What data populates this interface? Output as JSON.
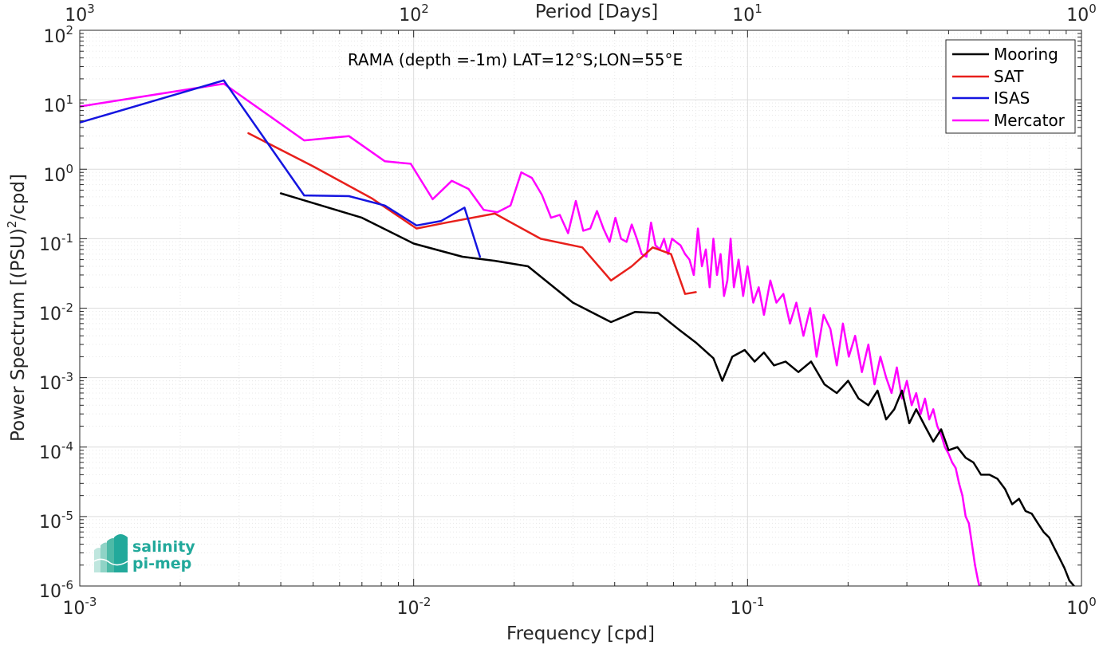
{
  "chart_data": {
    "type": "line",
    "title": "RAMA (depth =-1m) LAT=12°S;LON=55°E",
    "xlabel": "Frequency [cpd]",
    "ylabel_main": "Power Spectrum [(PSU)",
    "ylabel_sup": "2",
    "ylabel_tail": "/cpd]",
    "x2label": "Period [Days]",
    "xscale": "log",
    "yscale": "log",
    "xlim": [
      0.001,
      1
    ],
    "ylim": [
      1e-06,
      100
    ],
    "grid": true,
    "legend_position": "top-right",
    "x_ticks": [
      {
        "value": 0.001,
        "base": "10",
        "exp": "-3"
      },
      {
        "value": 0.01,
        "base": "10",
        "exp": "-2"
      },
      {
        "value": 0.1,
        "base": "10",
        "exp": "-1"
      },
      {
        "value": 1,
        "base": "10",
        "exp": "0"
      }
    ],
    "x2_ticks": [
      {
        "value": 0.001,
        "base": "10",
        "exp": "3"
      },
      {
        "value": 0.01,
        "base": "10",
        "exp": "2"
      },
      {
        "value": 0.1,
        "base": "10",
        "exp": "1"
      },
      {
        "value": 1,
        "base": "10",
        "exp": "0"
      }
    ],
    "y_ticks": [
      {
        "value": 100,
        "base": "10",
        "exp": "2"
      },
      {
        "value": 10,
        "base": "10",
        "exp": "1"
      },
      {
        "value": 1,
        "base": "10",
        "exp": "0"
      },
      {
        "value": 0.1,
        "base": "10",
        "exp": "-1"
      },
      {
        "value": 0.01,
        "base": "10",
        "exp": "-2"
      },
      {
        "value": 0.001,
        "base": "10",
        "exp": "-3"
      },
      {
        "value": 0.0001,
        "base": "10",
        "exp": "-4"
      },
      {
        "value": 1e-05,
        "base": "10",
        "exp": "-5"
      },
      {
        "value": 1e-06,
        "base": "10",
        "exp": "-6"
      }
    ],
    "series": [
      {
        "name": "Mooring",
        "color": "#000000",
        "x": [
          0.004,
          0.007,
          0.01,
          0.014,
          0.0175,
          0.022,
          0.03,
          0.039,
          0.046,
          0.054,
          0.062,
          0.07,
          0.079,
          0.084,
          0.09,
          0.098,
          0.105,
          0.112,
          0.12,
          0.13,
          0.142,
          0.155,
          0.17,
          0.185,
          0.2,
          0.215,
          0.23,
          0.245,
          0.26,
          0.275,
          0.29,
          0.305,
          0.32,
          0.34,
          0.36,
          0.38,
          0.4,
          0.425,
          0.45,
          0.475,
          0.5,
          0.53,
          0.56,
          0.59,
          0.62,
          0.65,
          0.68,
          0.71,
          0.74,
          0.77,
          0.8,
          0.83,
          0.86,
          0.89,
          0.92,
          0.95,
          0.98
        ],
        "y": [
          0.45,
          0.2,
          0.085,
          0.055,
          0.048,
          0.04,
          0.012,
          0.0063,
          0.0088,
          0.0085,
          0.005,
          0.0032,
          0.0019,
          0.0009,
          0.002,
          0.0025,
          0.0017,
          0.0023,
          0.0015,
          0.0017,
          0.0012,
          0.0017,
          0.0008,
          0.0006,
          0.0009,
          0.0005,
          0.0004,
          0.00065,
          0.00025,
          0.00035,
          0.00065,
          0.00022,
          0.00035,
          0.0002,
          0.00012,
          0.00018,
          9e-05,
          0.0001,
          7e-05,
          6e-05,
          4e-05,
          4e-05,
          3.5e-05,
          2.5e-05,
          1.5e-05,
          1.8e-05,
          1.2e-05,
          1.1e-05,
          8e-06,
          6e-06,
          5e-06,
          3.5e-06,
          2.5e-06,
          1.8e-06,
          1.2e-06,
          1e-06,
          8e-07
        ]
      },
      {
        "name": "SAT",
        "color": "#e8201c",
        "x": [
          0.0032,
          0.005,
          0.0075,
          0.0102,
          0.0125,
          0.0175,
          0.024,
          0.032,
          0.039,
          0.045,
          0.052,
          0.059,
          0.065,
          0.07
        ],
        "y": [
          3.3,
          1.1,
          0.38,
          0.14,
          0.17,
          0.23,
          0.1,
          0.075,
          0.025,
          0.04,
          0.075,
          0.06,
          0.016,
          0.017
        ]
      },
      {
        "name": "ISAS",
        "color": "#1515e0",
        "x": [
          0.001,
          0.0027,
          0.0047,
          0.0064,
          0.0082,
          0.0102,
          0.0121,
          0.0142,
          0.0158
        ],
        "y": [
          4.7,
          19.0,
          0.42,
          0.41,
          0.3,
          0.155,
          0.18,
          0.28,
          0.055
        ]
      },
      {
        "name": "Mercator",
        "color": "#ff00ff",
        "x": [
          0.001,
          0.0027,
          0.0047,
          0.0064,
          0.0082,
          0.0098,
          0.0114,
          0.013,
          0.0146,
          0.0162,
          0.0178,
          0.0195,
          0.021,
          0.0226,
          0.0242,
          0.0258,
          0.0274,
          0.029,
          0.0306,
          0.0322,
          0.0338,
          0.0354,
          0.037,
          0.0386,
          0.0402,
          0.0418,
          0.0434,
          0.045,
          0.0466,
          0.0482,
          0.0498,
          0.0514,
          0.053,
          0.0546,
          0.0562,
          0.0578,
          0.0594,
          0.061,
          0.063,
          0.065,
          0.067,
          0.069,
          0.071,
          0.073,
          0.075,
          0.077,
          0.079,
          0.081,
          0.083,
          0.085,
          0.087,
          0.089,
          0.091,
          0.094,
          0.097,
          0.1,
          0.104,
          0.108,
          0.112,
          0.117,
          0.122,
          0.128,
          0.134,
          0.14,
          0.147,
          0.154,
          0.161,
          0.169,
          0.177,
          0.185,
          0.193,
          0.201,
          0.21,
          0.22,
          0.23,
          0.24,
          0.25,
          0.26,
          0.27,
          0.28,
          0.29,
          0.3,
          0.31,
          0.32,
          0.33,
          0.34,
          0.35,
          0.36,
          0.37,
          0.38,
          0.39,
          0.4,
          0.41,
          0.42,
          0.43,
          0.44,
          0.45,
          0.46,
          0.47,
          0.48,
          0.49,
          0.5
        ],
        "y": [
          8.0,
          17.0,
          2.6,
          3.0,
          1.3,
          1.2,
          0.37,
          0.68,
          0.52,
          0.26,
          0.24,
          0.3,
          0.9,
          0.75,
          0.43,
          0.2,
          0.22,
          0.12,
          0.35,
          0.13,
          0.14,
          0.25,
          0.14,
          0.09,
          0.2,
          0.1,
          0.09,
          0.16,
          0.1,
          0.06,
          0.055,
          0.17,
          0.08,
          0.07,
          0.1,
          0.06,
          0.1,
          0.09,
          0.08,
          0.06,
          0.05,
          0.03,
          0.14,
          0.04,
          0.07,
          0.02,
          0.1,
          0.03,
          0.06,
          0.015,
          0.025,
          0.1,
          0.02,
          0.05,
          0.015,
          0.04,
          0.012,
          0.02,
          0.008,
          0.025,
          0.012,
          0.016,
          0.006,
          0.012,
          0.004,
          0.01,
          0.002,
          0.008,
          0.005,
          0.0015,
          0.006,
          0.002,
          0.004,
          0.0012,
          0.003,
          0.0008,
          0.002,
          0.001,
          0.0006,
          0.0014,
          0.0005,
          0.0009,
          0.0004,
          0.0006,
          0.0003,
          0.0005,
          0.00025,
          0.00035,
          0.0002,
          0.00015,
          0.0001,
          8e-05,
          6e-05,
          5e-05,
          3e-05,
          2e-05,
          1e-05,
          8e-06,
          4e-06,
          2e-06,
          1.2e-06,
          8e-07
        ]
      }
    ]
  },
  "logo": {
    "line1": "salinity",
    "line2": "pi-mep",
    "color": "#22a99b"
  }
}
